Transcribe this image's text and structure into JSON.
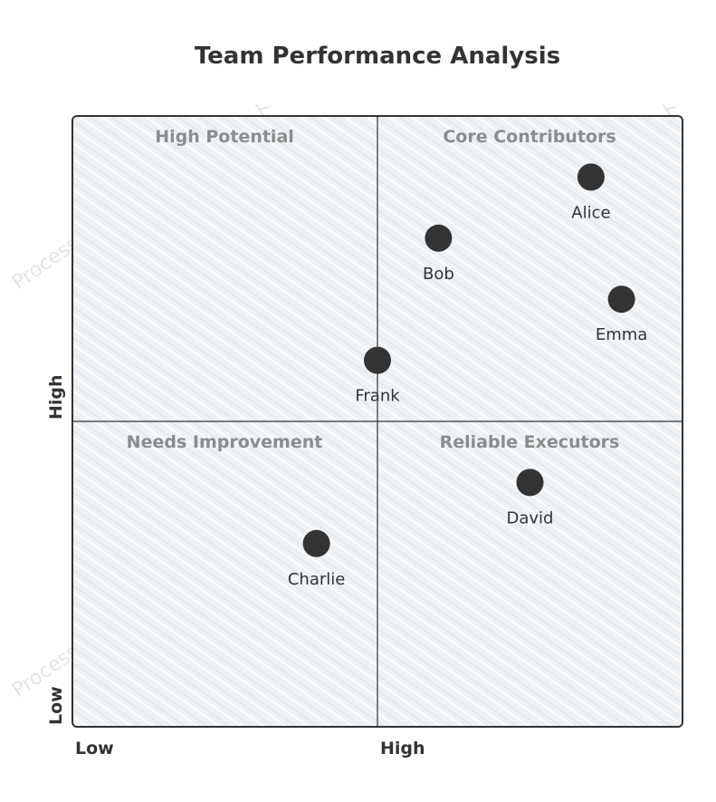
{
  "chart_data": {
    "type": "scatter",
    "title": "Team Performance Analysis",
    "quadrants": {
      "top_left": "High Potential",
      "top_right": "Core Contributors",
      "bottom_left": "Needs Improvement",
      "bottom_right": "Reliable Executors"
    },
    "x_axis": {
      "low": "Low",
      "high": "High"
    },
    "y_axis": {
      "low": "Low",
      "high": "High"
    },
    "xlim": [
      0,
      1
    ],
    "ylim": [
      0,
      1
    ],
    "points": [
      {
        "name": "Alice",
        "x": 0.85,
        "y": 0.9
      },
      {
        "name": "Bob",
        "x": 0.6,
        "y": 0.8
      },
      {
        "name": "Emma",
        "x": 0.9,
        "y": 0.7
      },
      {
        "name": "Frank",
        "x": 0.5,
        "y": 0.6
      },
      {
        "name": "David",
        "x": 0.75,
        "y": 0.4
      },
      {
        "name": "Charlie",
        "x": 0.4,
        "y": 0.3
      }
    ],
    "point_color": "#333333",
    "quadrant_fill": "#e8edf1",
    "border_color": "#333333"
  },
  "watermark": "ProcessOn.io 無料フローチャート"
}
